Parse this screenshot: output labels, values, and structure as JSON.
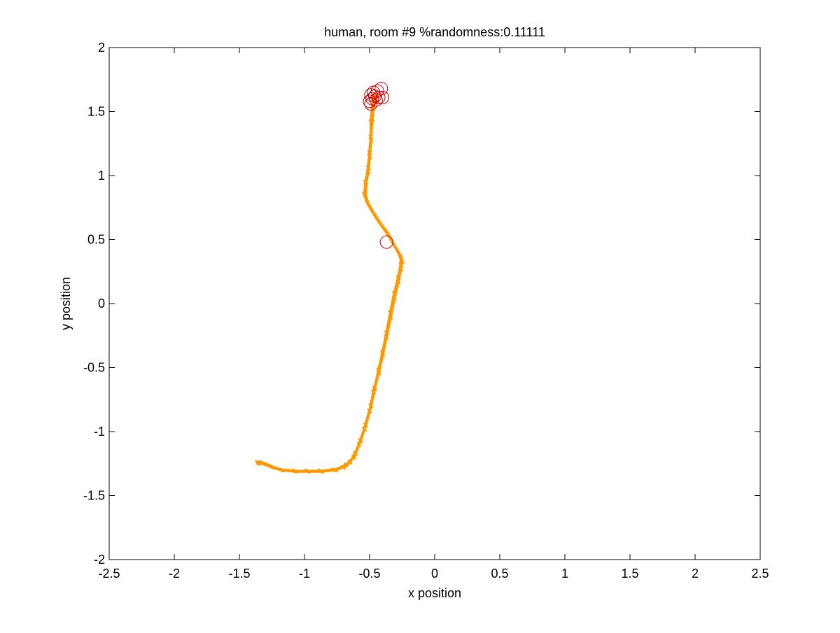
{
  "chart_data": {
    "type": "line",
    "title": "human, room #9 %randomness:0.11111",
    "xlabel": "x position",
    "ylabel": "y position",
    "xlim": [
      -2.5,
      2.5
    ],
    "ylim": [
      -2,
      2
    ],
    "xticks": [
      -2.5,
      -2,
      -1.5,
      -1,
      -0.5,
      0,
      0.5,
      1,
      1.5,
      2,
      2.5
    ],
    "xtick_labels": [
      "-2.5",
      "-2",
      "-1.5",
      "-1",
      "-0.5",
      "0",
      "0.5",
      "1",
      "1.5",
      "2",
      "2.5"
    ],
    "yticks": [
      -2,
      -1.5,
      -1,
      -0.5,
      0,
      0.5,
      1,
      1.5,
      2
    ],
    "ytick_labels": [
      "-2",
      "-1.5",
      "-1",
      "-0.5",
      "0",
      "0.5",
      "1",
      "1.5",
      "2"
    ],
    "grid": false,
    "box": true,
    "series": [
      {
        "style": "trajectory",
        "color": "#ff9900",
        "x": [
          -1.36,
          -1.33,
          -1.26,
          -1.18,
          -1.08,
          -0.98,
          -0.88,
          -0.78,
          -0.7,
          -0.65,
          -0.61,
          -0.57,
          -0.53,
          -0.49,
          -0.46,
          -0.43,
          -0.4,
          -0.37,
          -0.34,
          -0.31,
          -0.28,
          -0.26,
          -0.26,
          -0.28,
          -0.32,
          -0.36,
          -0.42,
          -0.47,
          -0.51,
          -0.53,
          -0.53,
          -0.51,
          -0.5,
          -0.49,
          -0.49,
          -0.48,
          -0.47,
          -0.46
        ],
        "y": [
          -1.24,
          -1.24,
          -1.27,
          -1.3,
          -1.31,
          -1.31,
          -1.31,
          -1.3,
          -1.28,
          -1.24,
          -1.17,
          -1.07,
          -0.95,
          -0.8,
          -0.66,
          -0.52,
          -0.38,
          -0.23,
          -0.07,
          0.08,
          0.2,
          0.3,
          0.35,
          0.4,
          0.47,
          0.55,
          0.63,
          0.71,
          0.78,
          0.84,
          0.93,
          1.03,
          1.15,
          1.28,
          1.42,
          1.52,
          1.58,
          1.62
        ]
      },
      {
        "style": "trajectory",
        "color": "#ff9900",
        "x": [
          -1.36,
          -1.32,
          -1.25,
          -1.17,
          -1.07,
          -0.97,
          -0.87,
          -0.76,
          -0.68,
          -0.62,
          -0.58,
          -0.54,
          -0.5,
          -0.47,
          -0.43,
          -0.4,
          -0.37,
          -0.34,
          -0.31,
          -0.28,
          -0.26,
          -0.25,
          -0.26,
          -0.29,
          -0.33,
          -0.38,
          -0.43,
          -0.48,
          -0.52,
          -0.54,
          -0.53,
          -0.51,
          -0.5,
          -0.49,
          -0.48,
          -0.47,
          -0.46,
          -0.45
        ],
        "y": [
          -1.25,
          -1.25,
          -1.28,
          -1.3,
          -1.31,
          -1.31,
          -1.31,
          -1.3,
          -1.26,
          -1.2,
          -1.1,
          -0.98,
          -0.84,
          -0.69,
          -0.54,
          -0.4,
          -0.26,
          -0.11,
          0.04,
          0.17,
          0.27,
          0.33,
          0.37,
          0.42,
          0.49,
          0.57,
          0.64,
          0.72,
          0.79,
          0.85,
          0.95,
          1.06,
          1.18,
          1.3,
          1.44,
          1.54,
          1.59,
          1.63
        ]
      }
    ],
    "markers": {
      "shape": "circle",
      "color": "#cc0000",
      "points": [
        {
          "x": -0.41,
          "y": 1.68
        },
        {
          "x": -0.44,
          "y": 1.66
        },
        {
          "x": -0.47,
          "y": 1.65
        },
        {
          "x": -0.49,
          "y": 1.63
        },
        {
          "x": -0.46,
          "y": 1.62
        },
        {
          "x": -0.43,
          "y": 1.61
        },
        {
          "x": -0.4,
          "y": 1.61
        },
        {
          "x": -0.48,
          "y": 1.6
        },
        {
          "x": -0.45,
          "y": 1.59
        },
        {
          "x": -0.5,
          "y": 1.58
        },
        {
          "x": -0.49,
          "y": 1.56
        },
        {
          "x": -0.37,
          "y": 0.48
        }
      ]
    }
  }
}
